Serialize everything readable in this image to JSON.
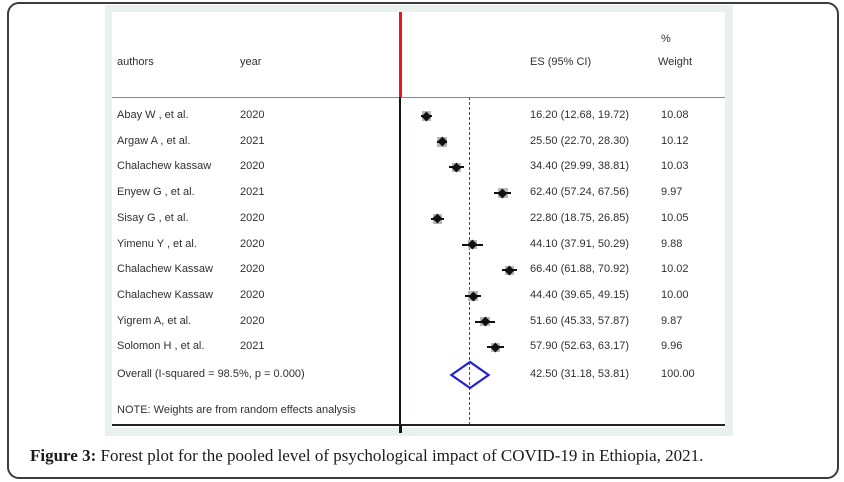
{
  "figure": {
    "caption_prefix": "Figure 3:",
    "caption_text": " Forest plot for the pooled level of psychological impact of COVID-19 in Ethiopia, 2021.",
    "note": "NOTE: Weights are from random effects analysis"
  },
  "chart_data": {
    "type": "forest",
    "title": "",
    "columns": {
      "authors": "authors",
      "year": "year",
      "es": "ES (95% CI)",
      "percent_symbol": "%",
      "weight": "Weight"
    },
    "x_axis": {
      "zero_value": 0,
      "pooled_value": 42.5,
      "tick_labels_visible": false
    },
    "studies": [
      {
        "author": "Abay W , et al.",
        "year": "2020",
        "es": 16.2,
        "ci_low": 12.68,
        "ci_high": 19.72,
        "es_label": "16.20 (12.68, 19.72)",
        "weight": 10.08,
        "weight_label": "10.08"
      },
      {
        "author": "Argaw A , et al.",
        "year": "2021",
        "es": 25.5,
        "ci_low": 22.7,
        "ci_high": 28.3,
        "es_label": "25.50 (22.70, 28.30)",
        "weight": 10.12,
        "weight_label": "10.12"
      },
      {
        "author": "Chalachew kassaw",
        "year": "2020",
        "es": 34.4,
        "ci_low": 29.99,
        "ci_high": 38.81,
        "es_label": "34.40 (29.99, 38.81)",
        "weight": 10.03,
        "weight_label": "10.03"
      },
      {
        "author": "Enyew G , et al.",
        "year": "2021",
        "es": 62.4,
        "ci_low": 57.24,
        "ci_high": 67.56,
        "es_label": "62.40 (57.24, 67.56)",
        "weight": 9.97,
        "weight_label": "9.97"
      },
      {
        "author": "Sisay G , et al.",
        "year": "2020",
        "es": 22.8,
        "ci_low": 18.75,
        "ci_high": 26.85,
        "es_label": "22.80 (18.75, 26.85)",
        "weight": 10.05,
        "weight_label": "10.05"
      },
      {
        "author": "Yimenu Y , et al.",
        "year": "2020",
        "es": 44.1,
        "ci_low": 37.91,
        "ci_high": 50.29,
        "es_label": "44.10 (37.91, 50.29)",
        "weight": 9.88,
        "weight_label": "9.88"
      },
      {
        "author": "Chalachew Kassaw",
        "year": "2020",
        "es": 66.4,
        "ci_low": 61.88,
        "ci_high": 70.92,
        "es_label": "66.40 (61.88, 70.92)",
        "weight": 10.02,
        "weight_label": "10.02"
      },
      {
        "author": "Chalachew Kassaw",
        "year": "2020",
        "es": 44.4,
        "ci_low": 39.65,
        "ci_high": 49.15,
        "es_label": "44.40 (39.65, 49.15)",
        "weight": 10.0,
        "weight_label": "10.00"
      },
      {
        "author": "Yigrem A, et al.",
        "year": "2020",
        "es": 51.6,
        "ci_low": 45.33,
        "ci_high": 57.87,
        "es_label": "51.60 (45.33, 57.87)",
        "weight": 9.87,
        "weight_label": "9.87"
      },
      {
        "author": "Solomon H , et al.",
        "year": "2021",
        "es": 57.9,
        "ci_low": 52.63,
        "ci_high": 63.17,
        "es_label": "57.90 (52.63, 63.17)",
        "weight": 9.96,
        "weight_label": "9.96"
      }
    ],
    "overall": {
      "label": "Overall  (I-squared = 98.5%, p = 0.000)",
      "es": 42.5,
      "ci_low": 31.18,
      "ci_high": 53.81,
      "es_label": "42.50 (31.18, 53.81)",
      "weight_label": "100.00"
    },
    "colors": {
      "zero_line_top": "#ee1520",
      "zero_line": "#1c1212",
      "pooled_dashed": "#8b3535",
      "diamond": "#2323cc",
      "weight_box": "#b8b8b8",
      "marker": "#111111",
      "ci_line": "#111111",
      "plot_margin_bg": "#e9f1ee"
    }
  }
}
